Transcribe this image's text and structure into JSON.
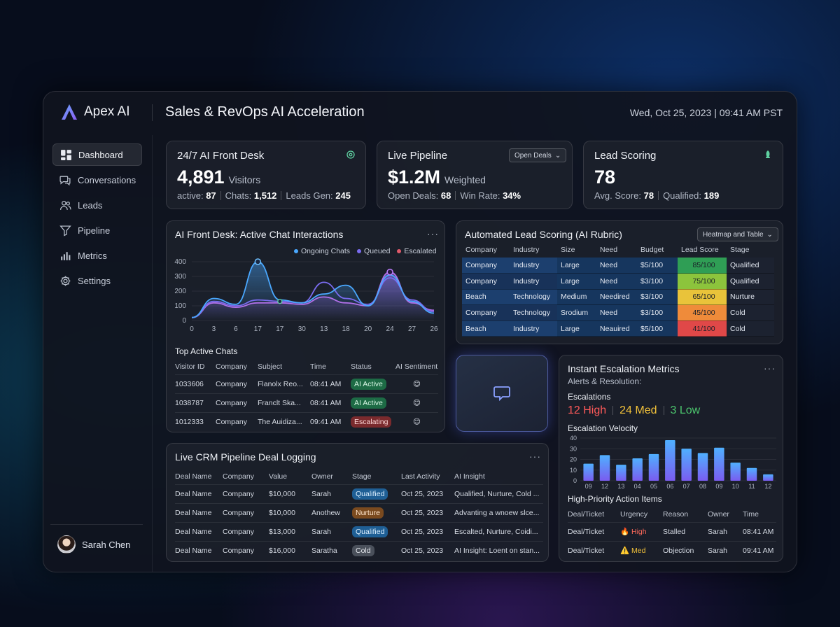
{
  "app": {
    "name": "Apex AI",
    "title": "Sales & RevOps AI Acceleration",
    "datetime": "Wed, Oct 25, 2023 | 09:41 AM PST"
  },
  "sidebar": {
    "items": [
      {
        "label": "Dashboard",
        "icon": "grid-icon"
      },
      {
        "label": "Conversations",
        "icon": "chat-icon"
      },
      {
        "label": "Leads",
        "icon": "users-icon"
      },
      {
        "label": "Pipeline",
        "icon": "filter-icon"
      },
      {
        "label": "Metrics",
        "icon": "bar-chart-icon"
      },
      {
        "label": "Settings",
        "icon": "gear-icon"
      }
    ],
    "user": "Sarah Chen"
  },
  "kpis": {
    "front_desk": {
      "title": "24/7 AI Front Desk",
      "value": "4,891",
      "unit": "Visitors",
      "active_label": "active:",
      "active": "87",
      "chats_label": "Chats:",
      "chats": "1,512",
      "leads_label": "Leads Gen:",
      "leads": "245"
    },
    "pipeline": {
      "title": "Live Pipeline",
      "value": "$1.2M",
      "unit": "Weighted",
      "select": "Open Deals",
      "open_label": "Open Deals:",
      "open": "68",
      "win_label": "Win Rate:",
      "win": "34%"
    },
    "lead_scoring": {
      "title": "Lead Scoring",
      "value": "78",
      "avg_label": "Avg. Score:",
      "avg": "78",
      "qual_label": "Qualified:",
      "qual": "189"
    }
  },
  "chat_chart": {
    "title": "AI Front Desk: Active Chat Interactions",
    "legend": [
      "Ongoing Chats",
      "Queued",
      "Escalated"
    ],
    "colors": {
      "ongoing": "#4aa8ff",
      "queued": "#7a6cf0",
      "escalated": "#e05a6a"
    }
  },
  "chart_data": {
    "type": "line",
    "x": [
      "0",
      "3",
      "6",
      "17",
      "17",
      "30",
      "13",
      "18",
      "20",
      "24",
      "27",
      "26"
    ],
    "ylim": [
      0,
      400
    ],
    "yticks": [
      "400",
      "300",
      "200",
      "100",
      "0"
    ],
    "series": [
      {
        "name": "Ongoing Chats",
        "values": [
          20,
          150,
          110,
          400,
          140,
          120,
          180,
          240,
          100,
          310,
          130,
          50
        ]
      },
      {
        "name": "Queued",
        "values": [
          20,
          130,
          100,
          140,
          130,
          120,
          260,
          150,
          110,
          290,
          140,
          60
        ]
      },
      {
        "name": "Escalated",
        "values": [
          20,
          120,
          90,
          120,
          120,
          110,
          160,
          120,
          100,
          330,
          120,
          70
        ]
      }
    ]
  },
  "top_chats": {
    "title": "Top Active Chats",
    "columns": [
      "Visitor ID",
      "Company",
      "Subject",
      "Time",
      "Status",
      "AI Sentiment"
    ],
    "rows": [
      {
        "id": "1033606",
        "company": "Company",
        "subject": "Flanolx Reo...",
        "time": "08:41 AM",
        "status": "AI Active",
        "sentiment": "😊"
      },
      {
        "id": "1038787",
        "company": "Company",
        "subject": "Franclt Ska...",
        "time": "08:41 AM",
        "status": "AI Active",
        "sentiment": "😊"
      },
      {
        "id": "1012333",
        "company": "Company",
        "subject": "The Auidiza...",
        "time": "09:41 AM",
        "status": "Escalating",
        "sentiment": "😊"
      }
    ]
  },
  "lead_rubric": {
    "title": "Automated Lead Scoring (AI Rubric)",
    "select": "Heatmap and Table",
    "columns": [
      "Company",
      "Industry",
      "Size",
      "Need",
      "Budget",
      "Lead Score",
      "Stage"
    ],
    "rows": [
      {
        "company": "Company",
        "industry": "Industry",
        "size": "Large",
        "need": "Need",
        "budget": "$5/100",
        "score": "85/100",
        "stage": "Qualified",
        "score_color": "#2f9e55"
      },
      {
        "company": "Company",
        "industry": "Industry",
        "size": "Large",
        "need": "Need",
        "budget": "$3/100",
        "score": "75/100",
        "stage": "Qualified",
        "score_color": "#8cc43c"
      },
      {
        "company": "Beach",
        "industry": "Technology",
        "size": "Medium",
        "need": "Needired",
        "budget": "$3/100",
        "score": "65/100",
        "stage": "Nurture",
        "score_color": "#e9c33a"
      },
      {
        "company": "Company",
        "industry": "Technology",
        "size": "Srodium",
        "need": "Need",
        "budget": "$3/100",
        "score": "45/100",
        "stage": "Cold",
        "score_color": "#ef8b3a"
      },
      {
        "company": "Beach",
        "industry": "Industry",
        "size": "Large",
        "need": "Neauired",
        "budget": "$5/100",
        "score": "41/100",
        "stage": "Cold",
        "score_color": "#e04848"
      }
    ]
  },
  "crm": {
    "title": "Live CRM Pipeline Deal Logging",
    "columns": [
      "Deal Name",
      "Company",
      "Value",
      "Owner",
      "Stage",
      "Last Activity",
      "AI Insight"
    ],
    "rows": [
      {
        "deal": "Deal Name",
        "company": "Company",
        "value": "$10,000",
        "owner": "Sarah",
        "stage": "Qualified",
        "stage_style": "blue",
        "activity": "Oct 25, 2023",
        "insight": "Qualified, Nurture, Cold ..."
      },
      {
        "deal": "Deal Name",
        "company": "Company",
        "value": "$10,000",
        "owner": "Anothew",
        "stage": "Nurture",
        "stage_style": "brown",
        "activity": "Oct 25, 2023",
        "insight": "Advanting a wnoew slce..."
      },
      {
        "deal": "Deal Name",
        "company": "Company",
        "value": "$13,000",
        "owner": "Sarah",
        "stage": "Qualified",
        "stage_style": "blue",
        "activity": "Oct 25, 2023",
        "insight": "Escalted, Nurture, Coidi..."
      },
      {
        "deal": "Deal Name",
        "company": "Company",
        "value": "$16,000",
        "owner": "Saratha",
        "stage": "Cold",
        "stage_style": "gray",
        "activity": "Oct 25, 2023",
        "insight": "AI Insight: Loent on stan..."
      }
    ]
  },
  "escalation": {
    "title": "Instant Escalation Metrics",
    "subtitle": "Alerts & Resolution:",
    "counts_title": "Escalations",
    "high": "12 High",
    "med": "24 Med",
    "low": "3 Low",
    "velocity_title": "Escalation Velocity",
    "velocity": {
      "x": [
        "09",
        "12",
        "13",
        "04",
        "05",
        "06",
        "07",
        "08",
        "09",
        "10",
        "11",
        "12"
      ],
      "values": [
        16,
        24,
        15,
        21,
        25,
        38,
        30,
        26,
        31,
        17,
        12,
        6
      ],
      "yticks": [
        "40",
        "30",
        "20",
        "10",
        "0"
      ],
      "ylim": [
        0,
        40
      ]
    },
    "actions_title": "High-Priority Action Items",
    "action_columns": [
      "Deal/Ticket",
      "Urgency",
      "Reason",
      "Owner",
      "Time"
    ],
    "actions": [
      {
        "deal": "Deal/Ticket",
        "urgency": "🔥 High",
        "reason": "Stalled",
        "owner": "Sarah",
        "time": "08:41 AM"
      },
      {
        "deal": "Deal/Ticket",
        "urgency": "⚠️ Med",
        "reason": "Objection",
        "owner": "Sarah",
        "time": "09:41 AM"
      }
    ]
  }
}
